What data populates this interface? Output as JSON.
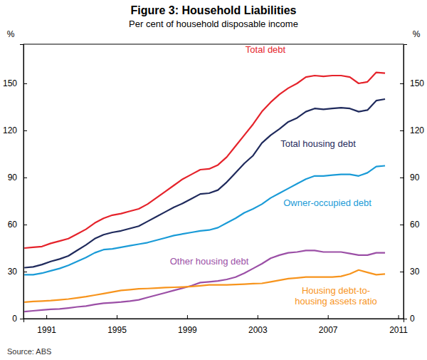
{
  "chart_data": {
    "type": "line",
    "title": "Figure 3: Household Liabilities",
    "subtitle": "Per cent of household disposable income",
    "ylabel": "%",
    "source": "Source: ABS",
    "grid": false,
    "xlim": [
      1989.7,
      2011.3
    ],
    "xticks": [
      1991,
      1995,
      1999,
      2003,
      2007,
      2011
    ],
    "ylim": [
      0,
      175
    ],
    "yticks": [
      0,
      30,
      60,
      90,
      120,
      150
    ],
    "x": [
      1989.75,
      1990.25,
      1990.75,
      1991.25,
      1991.75,
      1992.25,
      1992.75,
      1993.25,
      1993.75,
      1994.25,
      1994.75,
      1995.25,
      1995.75,
      1996.25,
      1996.75,
      1997.25,
      1997.75,
      1998.25,
      1998.75,
      1999.25,
      1999.75,
      2000.25,
      2000.75,
      2001.25,
      2001.75,
      2002.25,
      2002.75,
      2003.25,
      2003.75,
      2004.25,
      2004.75,
      2005.25,
      2005.75,
      2006.25,
      2006.75,
      2007.25,
      2007.75,
      2008.25,
      2008.75,
      2009.25,
      2009.75,
      2010.25
    ],
    "series": [
      {
        "name": "Total debt",
        "color": "#e5232b",
        "values": [
          45,
          45.5,
          46,
          48,
          49.5,
          51,
          54,
          57,
          61,
          64,
          66,
          67,
          68.5,
          70,
          73,
          77,
          81,
          85,
          89,
          92,
          95,
          95.5,
          98,
          103,
          110,
          117,
          124,
          132,
          138,
          143,
          147,
          150,
          154,
          155,
          154.5,
          155,
          155,
          154,
          150,
          151,
          157,
          156.5
        ]
      },
      {
        "name": "Total housing debt",
        "color": "#1f2a5c",
        "values": [
          32.5,
          33,
          34.5,
          36.5,
          38,
          40,
          43.5,
          47,
          51,
          53.5,
          55,
          56,
          57.5,
          59,
          62,
          65,
          68,
          71,
          73.5,
          76.5,
          79.5,
          80,
          82,
          87,
          93,
          99,
          104,
          112,
          117,
          121,
          125.5,
          128,
          132,
          134,
          133.5,
          134,
          134.5,
          134,
          132,
          133,
          139,
          140
        ]
      },
      {
        "name": "Owner-occupied debt",
        "color": "#1a9bd7",
        "values": [
          28,
          28,
          29,
          30.5,
          32,
          34,
          36.5,
          39,
          42,
          44,
          44.5,
          45.5,
          46.5,
          47.5,
          48.5,
          50,
          51.5,
          53,
          54,
          55,
          56,
          56.5,
          58,
          61,
          64,
          67.5,
          70,
          73,
          77,
          80,
          83,
          86,
          89,
          91,
          91,
          91.5,
          92,
          92,
          91,
          93,
          97,
          97.5
        ]
      },
      {
        "name": "Other housing debt",
        "color": "#9b4fa6",
        "values": [
          4.5,
          5,
          5.5,
          6,
          6.2,
          6.8,
          7.5,
          8,
          9,
          9.8,
          10.2,
          10.6,
          11.2,
          12,
          13.5,
          15,
          16.5,
          18,
          19.5,
          21,
          23,
          23.5,
          24,
          25,
          26.5,
          29,
          32,
          35,
          38.5,
          40.5,
          42,
          42.5,
          43.5,
          43.5,
          42.5,
          42.5,
          42.5,
          41.5,
          40.5,
          40.5,
          42,
          42
        ]
      },
      {
        "name": "Housing debt-to-housing assets ratio",
        "color": "#f7941d",
        "values": [
          10.5,
          11,
          11.2,
          11.5,
          12,
          12.5,
          13.2,
          14,
          15,
          16,
          17,
          18,
          18.5,
          19,
          19.2,
          19.5,
          19.8,
          20,
          20.2,
          20.5,
          21,
          21.5,
          21.5,
          21.5,
          21.8,
          22,
          22.3,
          22.5,
          23.5,
          24.5,
          25.5,
          26,
          26.5,
          26.5,
          26.5,
          26.5,
          27,
          28.5,
          31,
          29.5,
          28,
          28.5
        ]
      }
    ]
  }
}
